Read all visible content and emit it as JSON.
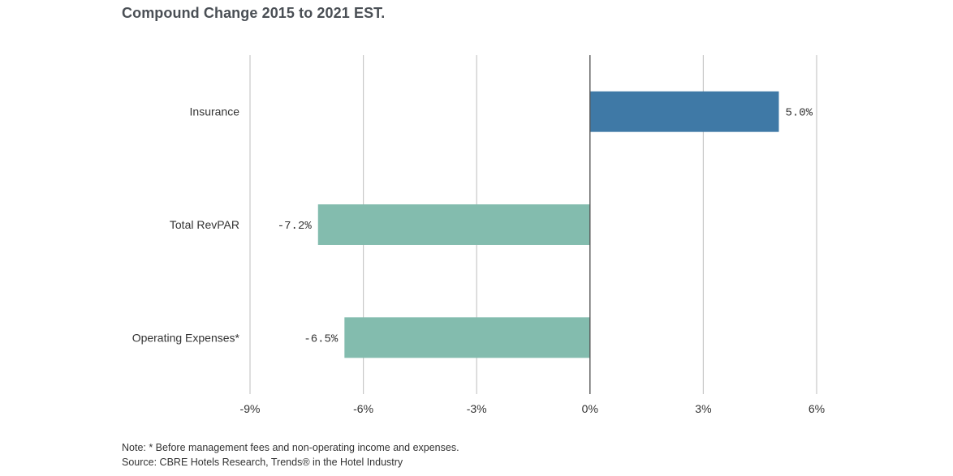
{
  "chart_data": {
    "type": "bar",
    "orientation": "horizontal",
    "title": "Compound Change 2015 to 2021 EST.",
    "categories": [
      "Insurance",
      "Total RevPAR",
      "Operating Expenses*"
    ],
    "values": [
      5.0,
      -7.2,
      -6.5
    ],
    "value_labels": [
      "5.0%",
      "-7.2%",
      "-6.5%"
    ],
    "xlim": [
      -9,
      6
    ],
    "xticks": [
      -9,
      -6,
      -3,
      0,
      3,
      6
    ],
    "xtick_labels": [
      "-9%",
      "-6%",
      "-3%",
      "0%",
      "3%",
      "6%"
    ],
    "xlabel": "",
    "ylabel": "",
    "grid": true,
    "colors": {
      "positive": "#3f79a6",
      "negative": "#83bcae",
      "grid": "#c8c8c8",
      "zero_line": "#555555"
    }
  },
  "notes": {
    "note": "Note: * Before management fees and non-operating income and expenses.",
    "source": "Source: CBRE Hotels Research, Trends® in the Hotel Industry"
  }
}
